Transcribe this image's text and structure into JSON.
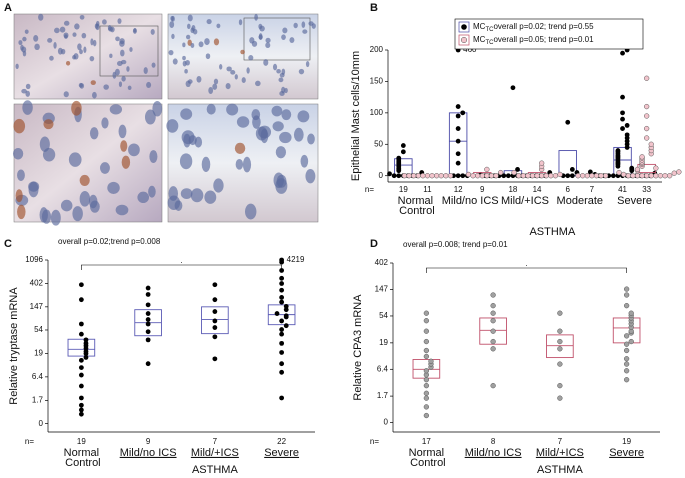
{
  "panel_a": {
    "label": "A"
  },
  "chart_data": [
    {
      "label": "B",
      "type": "dotbox",
      "ylabel": "Epithelial Mast cells/10mm",
      "ylim": [
        -10,
        200
      ],
      "yticks": [
        0,
        50,
        100,
        150,
        200
      ],
      "yscale": "linear",
      "categories": [
        "Normal Control",
        "Mild/no ICS",
        "Mild/+ICS",
        "Moderate",
        "Severe"
      ],
      "group_label": "ASTHMA",
      "n_label": "n=",
      "legend": true,
      "underline_groups": false,
      "series": [
        {
          "name": "MC",
          "subscript": "TC",
          "stats": "overall p=0.02; trend p=0.55",
          "color": "#000000",
          "box_color": "#4b4ba8",
          "n": [
            19,
            12,
            18,
            6,
            41
          ],
          "values": [
            [
              0,
              0,
              0,
              0,
              0,
              0,
              3,
              5,
              8,
              10,
              12,
              15,
              17,
              20,
              22,
              25,
              28,
              38,
              48
            ],
            [
              0,
              0,
              0,
              0,
              20,
              35,
              55,
              75,
              95,
              100,
              110
            ],
            [
              0,
              0,
              0,
              0,
              0,
              0,
              0,
              0,
              0,
              0,
              0,
              0,
              0,
              0,
              2,
              5,
              10,
              140
            ],
            [
              0,
              0,
              0,
              5,
              10,
              85
            ],
            [
              0,
              0,
              0,
              0,
              0,
              0,
              0,
              0,
              0,
              0,
              0,
              0,
              2,
              4,
              6,
              8,
              10,
              12,
              15,
              18,
              20,
              22,
              25,
              28,
              30,
              32,
              35,
              38,
              40,
              45,
              50,
              55,
              60,
              65,
              75,
              80,
              90,
              100,
              125,
              195,
              200
            ]
          ],
          "boxes": [
            [
              0,
              17,
              27
            ],
            [
              0,
              55,
              100
            ],
            [
              0,
              0,
              8
            ],
            [
              0,
              0,
              40
            ],
            [
              0,
              25,
              45
            ]
          ]
        },
        {
          "name": "MC",
          "subscript": "TC",
          "stats": "overall p=0.05; trend p=0.01",
          "color": "#f2c4cc",
          "box_color": "#c0506a",
          "n": [
            11,
            9,
            14,
            7,
            33
          ],
          "values": [
            [
              0,
              0,
              0,
              0,
              0,
              0,
              0,
              0,
              0,
              0,
              0
            ],
            [
              0,
              0,
              0,
              0,
              0,
              0,
              2,
              5,
              10
            ],
            [
              0,
              0,
              0,
              0,
              0,
              0,
              0,
              0,
              0,
              2,
              5,
              10,
              15,
              20
            ],
            [
              0,
              0,
              0,
              0,
              0,
              0,
              0
            ],
            [
              0,
              0,
              0,
              0,
              0,
              0,
              0,
              0,
              0,
              0,
              2,
              4,
              5,
              6,
              8,
              10,
              12,
              15,
              18,
              20,
              22,
              25,
              28,
              30,
              35,
              40,
              45,
              50,
              60,
              75,
              95,
              110,
              155
            ]
          ],
          "boxes": [
            [
              0,
              0,
              0
            ],
            [
              0,
              0,
              5
            ],
            [
              0,
              0,
              5
            ],
            [
              0,
              0,
              0
            ],
            [
              0,
              5,
              18
            ]
          ]
        }
      ],
      "annotations": [
        {
          "text": "460",
          "value": 460,
          "series": 0,
          "category": 1
        }
      ]
    },
    {
      "label": "C",
      "type": "dotbox",
      "title": "overall p=0.02;trend p=0.008",
      "bracket_label": ".",
      "ylabel": "Relative tryptase mRNA",
      "ylim": [
        -0.3,
        1096
      ],
      "yticks": [
        0,
        1.7,
        6.4,
        19,
        54,
        147,
        402,
        1096
      ],
      "yscale": "log1p",
      "categories": [
        "Normal Control",
        "Mild/no ICS",
        "Mild/+ICS",
        "Severe"
      ],
      "group_label": "ASTHMA",
      "n_label": "n=",
      "legend": false,
      "underline_groups": true,
      "series": [
        {
          "color": "#000000",
          "box_color": "#5b5bb5",
          "n": [
            19,
            9,
            7,
            22
          ],
          "values": [
            [
              0.5,
              0.8,
              1.2,
              2,
              4,
              7,
              10,
              14,
              16,
              19,
              21,
              24,
              27,
              30,
              35,
              45,
              70,
              200,
              380
            ],
            [
              12,
              35,
              50,
              70,
              85,
              110,
              160,
              250,
              330
            ],
            [
              15,
              40,
              60,
              80,
              120,
              200,
              380
            ],
            [
              2,
              8,
              12,
              20,
              30,
              45,
              55,
              65,
              80,
              95,
              100,
              110,
              130,
              150,
              180,
              220,
              300,
              400,
              500,
              700,
              1000
            ]
          ],
          "boxes": [
            [
              17,
              23,
              36
            ],
            [
              42,
              74,
              130
            ],
            [
              46,
              85,
              147
            ],
            [
              68,
              105,
              160
            ]
          ]
        }
      ],
      "annotations": [
        {
          "text": "4219",
          "value": 4219,
          "series": 0,
          "category": 3
        }
      ]
    },
    {
      "label": "D",
      "type": "dotbox",
      "title": "overall p=0.008; trend p=0.01",
      "bracket_label": ".",
      "ylabel": "Relative CPA3 mRNA",
      "ylim": [
        -0.3,
        402
      ],
      "yticks": [
        0,
        1.7,
        6.4,
        19,
        54,
        147,
        402
      ],
      "yscale": "log1p",
      "categories": [
        "Normal Control",
        "Mild/no ICS",
        "Mild/+ICS",
        "Severe"
      ],
      "group_label": "ASTHMA",
      "n_label": "n=",
      "legend": false,
      "underline_groups": true,
      "series": [
        {
          "color": "#a0a0a0",
          "box_color": "#c0506a",
          "n": [
            17,
            8,
            7,
            19
          ],
          "values": [
            [
              0.3,
              0.8,
              1.5,
              2,
              3,
              4,
              5,
              6,
              7,
              8,
              9,
              11,
              14,
              20,
              30,
              45,
              60
            ],
            [
              3,
              15,
              20,
              30,
              45,
              60,
              80,
              120
            ],
            [
              1.5,
              3,
              8,
              15,
              20,
              30,
              60
            ],
            [
              4,
              6,
              8,
              10,
              14,
              18,
              20,
              25,
              28,
              30,
              35,
              40,
              45,
              50,
              55,
              60,
              80,
              120,
              150
            ]
          ],
          "boxes": [
            [
              4.3,
              6.4,
              9.7
            ],
            [
              18,
              31,
              50
            ],
            [
              10.5,
              17,
              26
            ],
            [
              19,
              34,
              50
            ]
          ]
        }
      ]
    }
  ]
}
